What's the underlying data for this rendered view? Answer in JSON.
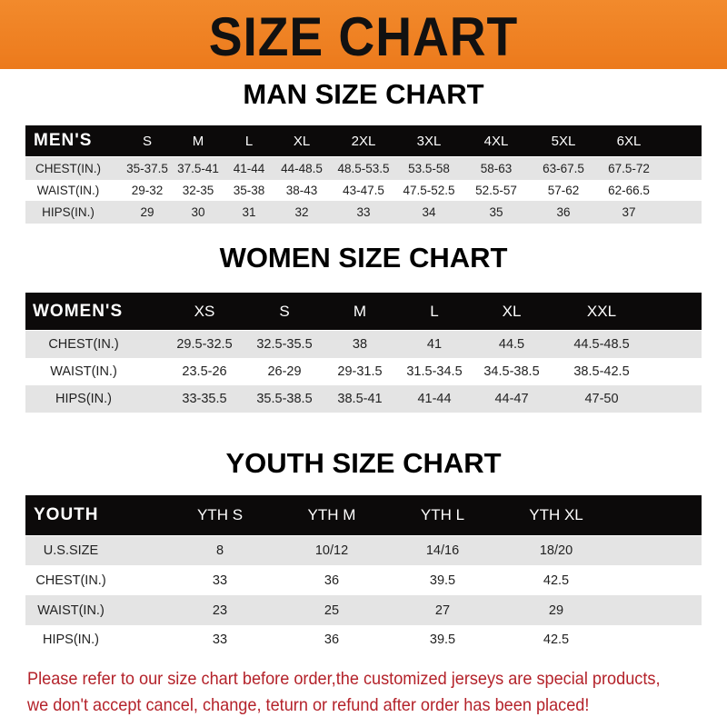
{
  "banner_title": "SIZE CHART",
  "accent_color": "#ee7f22",
  "tables": [
    {
      "title": "MAN SIZE CHART",
      "header": [
        "MEN'S",
        "S",
        "M",
        "L",
        "XL",
        "2XL",
        "3XL",
        "4XL",
        "5XL",
        "6XL"
      ],
      "rows": [
        [
          "CHEST(IN.)",
          "35-37.5",
          "37.5-41",
          "41-44",
          "44-48.5",
          "48.5-53.5",
          "53.5-58",
          "58-63",
          "63-67.5",
          "67.5-72"
        ],
        [
          "WAIST(IN.)",
          "29-32",
          "32-35",
          "35-38",
          "38-43",
          "43-47.5",
          "47.5-52.5",
          "52.5-57",
          "57-62",
          "62-66.5"
        ],
        [
          "HIPS(IN.)",
          "29",
          "30",
          "31",
          "32",
          "33",
          "34",
          "35",
          "36",
          "37"
        ]
      ]
    },
    {
      "title": "WOMEN SIZE CHART",
      "header": [
        "WOMEN'S",
        "XS",
        "S",
        "M",
        "L",
        "XL",
        "XXL"
      ],
      "rows": [
        [
          "CHEST(IN.)",
          "29.5-32.5",
          "32.5-35.5",
          "38",
          "41",
          "44.5",
          "44.5-48.5"
        ],
        [
          "WAIST(IN.)",
          "23.5-26",
          "26-29",
          "29-31.5",
          "31.5-34.5",
          "34.5-38.5",
          "38.5-42.5"
        ],
        [
          "HIPS(IN.)",
          "33-35.5",
          "35.5-38.5",
          "38.5-41",
          "41-44",
          "44-47",
          "47-50"
        ]
      ]
    },
    {
      "title": "YOUTH SIZE CHART",
      "header": [
        "YOUTH",
        "YTH S",
        "YTH M",
        "YTH L",
        "YTH XL"
      ],
      "rows": [
        [
          "U.S.SIZE",
          "8",
          "10/12",
          "14/16",
          "18/20"
        ],
        [
          "CHEST(IN.)",
          "33",
          "36",
          "39.5",
          "42.5"
        ],
        [
          "WAIST(IN.)",
          "23",
          "25",
          "27",
          "29"
        ],
        [
          "HIPS(IN.)",
          "33",
          "36",
          "39.5",
          "42.5"
        ]
      ]
    }
  ],
  "note_lines": [
    "Please refer to our size chart before order,the customized jerseys are special products,",
    "we don't accept cancel, change, teturn or refund after order has been placed!"
  ]
}
